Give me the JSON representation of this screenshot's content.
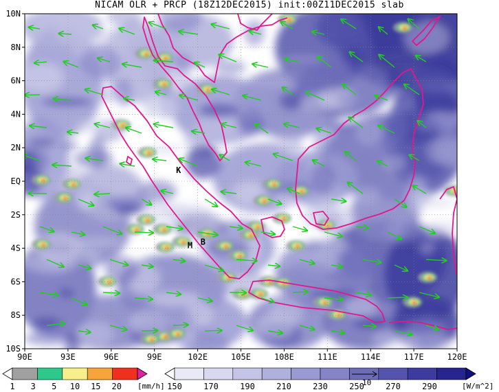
{
  "title": "NICAM OLR + PRCP (18Z12DEC2015) init:00Z11DEC2015 slab",
  "colors": {
    "background": "#ffffff",
    "coastline": "#e0188c",
    "wind_arrows": "#22cc22",
    "frame": "#000000"
  },
  "map": {
    "lon_range": [
      90,
      120
    ],
    "lat_range": [
      -10,
      10
    ],
    "lon_ticks": [
      "90E",
      "93E",
      "96E",
      "99E",
      "102E",
      "105E",
      "108E",
      "111E",
      "114E",
      "117E",
      "120E"
    ],
    "lat_ticks": [
      "10N",
      "8N",
      "6N",
      "4N",
      "2N",
      "EQ",
      "2S",
      "4S",
      "6S",
      "8S",
      "10S"
    ],
    "grid": "dotted"
  },
  "annotations": [
    {
      "text": "K",
      "lon": 100.5,
      "lat": 0.5
    },
    {
      "text": "M",
      "lon": 101.3,
      "lat": -4.0
    },
    {
      "text": "B",
      "lon": 102.2,
      "lat": -3.8
    }
  ],
  "precip_colorbar": {
    "labels": [
      "1",
      "3",
      "5",
      "10",
      "15",
      "20"
    ],
    "unit": "[mm/h]",
    "colors": [
      "#ffffff",
      "#a0a0a0",
      "#2ec88a",
      "#f7ef8c",
      "#f5a53a",
      "#f0301e",
      "#e020a0"
    ]
  },
  "olr_colorbar": {
    "labels": [
      "150",
      "170",
      "190",
      "210",
      "230",
      "250",
      "270",
      "290"
    ],
    "unit": "[W/m^2]",
    "colors": [
      "#ffffff",
      "#eaeaf6",
      "#d8d8ee",
      "#c4c4e6",
      "#b0b0dc",
      "#9a9ad2",
      "#8484c6",
      "#6c6cba",
      "#5454ac",
      "#3c3c9e",
      "#26268e",
      "#101080"
    ]
  },
  "wind_reference": {
    "value": "10"
  }
}
